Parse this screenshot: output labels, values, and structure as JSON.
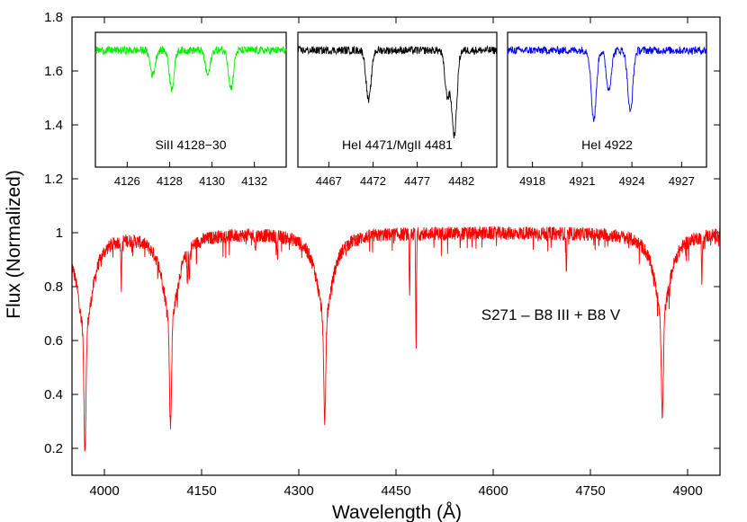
{
  "chart_data": [
    {
      "type": "line",
      "xlabel": "Wavelength (Å)",
      "ylabel": "Flux (Normalized)",
      "xlim": [
        3950,
        4950
      ],
      "ylim": [
        0.1,
        1.8
      ],
      "xticks": [
        4000,
        4150,
        4300,
        4450,
        4600,
        4750,
        4900
      ],
      "yticks": [
        0.2,
        0.4,
        0.6,
        0.8,
        1,
        1.2,
        1.4,
        1.6,
        1.8
      ],
      "annotation": "S271 – B8 III + B8 V",
      "series": [
        {
          "color": "#ff0000",
          "continuum": 1.0,
          "lines": [
            {
              "x": 3970,
              "depth": 0.8
            },
            {
              "x": 4026,
              "depth": 0.17
            },
            {
              "x": 4102,
              "depth": 0.71
            },
            {
              "x": 4128,
              "depth": 0.12
            },
            {
              "x": 4131,
              "depth": 0.12
            },
            {
              "x": 4233,
              "depth": 0.06
            },
            {
              "x": 4267,
              "depth": 0.08
            },
            {
              "x": 4340,
              "depth": 0.7
            },
            {
              "x": 4471,
              "depth": 0.24
            },
            {
              "x": 4481,
              "depth": 0.44
            },
            {
              "x": 4549,
              "depth": 0.04
            },
            {
              "x": 4713,
              "depth": 0.14
            },
            {
              "x": 4861,
              "depth": 0.68
            },
            {
              "x": 4922,
              "depth": 0.17
            }
          ]
        }
      ]
    },
    {
      "type": "line",
      "label": "SiII 4128−30",
      "xlim": [
        4124.5,
        4133.5
      ],
      "xticks": [
        4126,
        4128,
        4130,
        4132
      ],
      "series": [
        {
          "color": "#00ee00",
          "lines": [
            {
              "x": 4127.2,
              "depth": 0.22
            },
            {
              "x": 4128.1,
              "depth": 0.34
            },
            {
              "x": 4129.8,
              "depth": 0.22
            },
            {
              "x": 4130.9,
              "depth": 0.34
            }
          ]
        }
      ]
    },
    {
      "type": "line",
      "label": "HeI 4471/MgII 4481",
      "xlim": [
        4463.5,
        4486
      ],
      "xticks": [
        4467,
        4472,
        4477,
        4482
      ],
      "series": [
        {
          "color": "#000000",
          "lines": [
            {
              "x": 4471.5,
              "depth": 0.45
            },
            {
              "x": 4480.4,
              "depth": 0.4
            },
            {
              "x": 4481.2,
              "depth": 0.75
            }
          ]
        }
      ]
    },
    {
      "type": "line",
      "label": "HeI 4922",
      "xlim": [
        4916.5,
        4928.5
      ],
      "xticks": [
        4918,
        4921,
        4924,
        4927
      ],
      "series": [
        {
          "color": "#0000ee",
          "lines": [
            {
              "x": 4921.7,
              "depth": 0.62
            },
            {
              "x": 4922.6,
              "depth": 0.35
            },
            {
              "x": 4923.9,
              "depth": 0.55
            }
          ]
        }
      ]
    }
  ]
}
